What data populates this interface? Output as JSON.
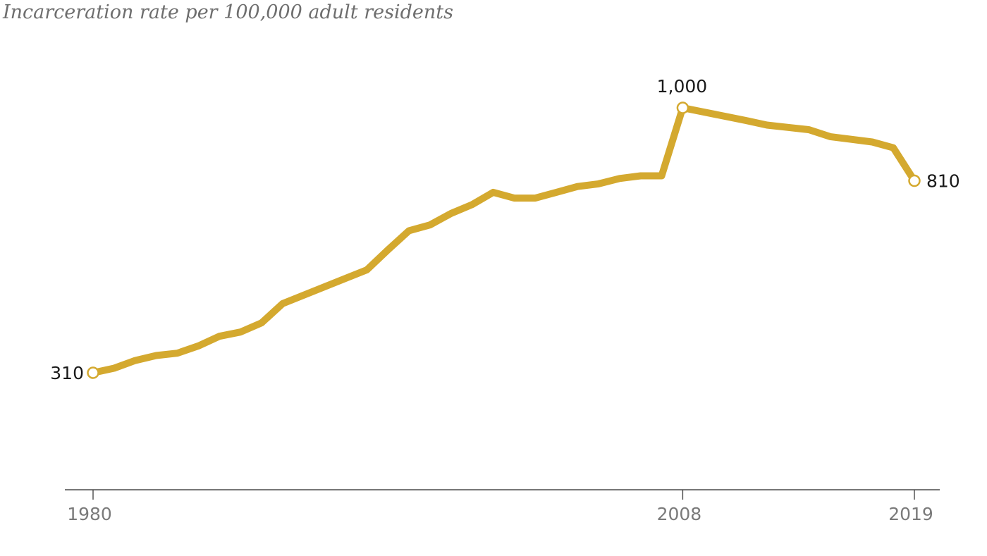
{
  "chart_data": {
    "type": "line",
    "title": "Incarceration rate per 100,000 adult residents",
    "xlabel": "",
    "ylabel": "",
    "xlim": [
      1980,
      2019
    ],
    "ylim": [
      120,
      1150
    ],
    "grid": false,
    "x_ticks": [
      "1980",
      "2008",
      "2019"
    ],
    "line_color": "#d4a92f",
    "series": [
      {
        "x": [
          1980,
          1981,
          1982,
          1983,
          1984,
          1985,
          1986,
          1987,
          1988,
          1989,
          1990,
          1991,
          1992,
          1993,
          1994,
          1995,
          1996,
          1997,
          1998,
          1999,
          2000,
          2001,
          2002,
          2003,
          2004,
          2005,
          2006,
          2007,
          2008,
          2009,
          2010,
          2011,
          2012,
          2013,
          2014,
          2015,
          2016,
          2017,
          2018,
          2019
        ],
        "y": [
          310,
          322,
          342,
          355,
          361,
          380,
          405,
          416,
          440,
          490,
          512,
          534,
          556,
          578,
          630,
          680,
          695,
          725,
          748,
          780,
          765,
          765,
          780,
          795,
          802,
          816,
          823,
          823,
          1000,
          989,
          978,
          967,
          955,
          949,
          943,
          925,
          918,
          911,
          896,
          810
        ]
      }
    ],
    "annotations": [
      {
        "x": 1980,
        "y": 310,
        "label": "310"
      },
      {
        "x": 2008,
        "y": 1000,
        "label": "1,000"
      },
      {
        "x": 2019,
        "y": 810,
        "label": "810"
      }
    ]
  }
}
